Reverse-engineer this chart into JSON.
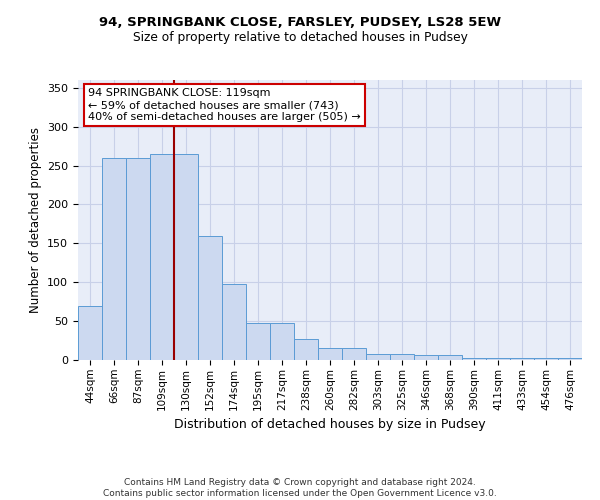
{
  "title1": "94, SPRINGBANK CLOSE, FARSLEY, PUDSEY, LS28 5EW",
  "title2": "Size of property relative to detached houses in Pudsey",
  "xlabel": "Distribution of detached houses by size in Pudsey",
  "ylabel": "Number of detached properties",
  "categories": [
    "44sqm",
    "66sqm",
    "87sqm",
    "109sqm",
    "130sqm",
    "152sqm",
    "174sqm",
    "195sqm",
    "217sqm",
    "238sqm",
    "260sqm",
    "282sqm",
    "303sqm",
    "325sqm",
    "346sqm",
    "368sqm",
    "390sqm",
    "411sqm",
    "433sqm",
    "454sqm",
    "476sqm"
  ],
  "bar_heights": [
    70,
    260,
    260,
    265,
    265,
    160,
    98,
    48,
    48,
    27,
    16,
    16,
    8,
    8,
    6,
    6,
    3,
    3,
    2,
    2,
    3
  ],
  "bar_color": "#ccd9f0",
  "bar_edge_color": "#5b9bd5",
  "vline_color": "#990000",
  "annotation_text": "94 SPRINGBANK CLOSE: 119sqm\n← 59% of detached houses are smaller (743)\n40% of semi-detached houses are larger (505) →",
  "annotation_box_edge_color": "#cc0000",
  "ylim": [
    0,
    360
  ],
  "yticks": [
    0,
    50,
    100,
    150,
    200,
    250,
    300,
    350
  ],
  "grid_color": "#c8d0e8",
  "bg_color": "#e8edf8",
  "footer": "Contains HM Land Registry data © Crown copyright and database right 2024.\nContains public sector information licensed under the Open Government Licence v3.0."
}
